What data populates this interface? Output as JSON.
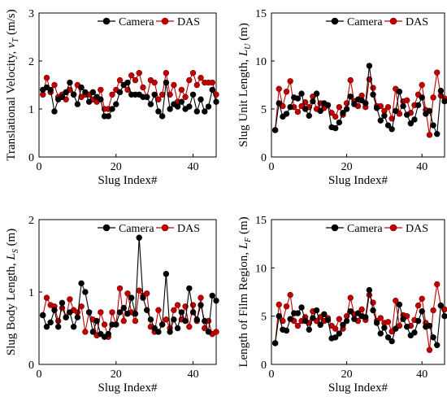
{
  "chart_data": [
    {
      "type": "line",
      "xlabel": "Slug Index#",
      "ylabel_main": "Translational Velocity, ",
      "ylabel_sym": "v",
      "ylabel_sub": "T",
      "ylabel_unit": " (m/s)",
      "xlim": [
        0,
        46
      ],
      "ylim": [
        0,
        3
      ],
      "xticks": [
        0,
        20,
        40
      ],
      "yticks": [
        0,
        1,
        2,
        3
      ],
      "legend": "top-right",
      "series": [
        {
          "name": "Camera",
          "color": "#000000",
          "x": [
            1,
            2,
            3,
            4,
            5,
            6,
            7,
            8,
            9,
            10,
            11,
            12,
            13,
            14,
            15,
            16,
            17,
            18,
            19,
            20,
            21,
            22,
            23,
            24,
            25,
            26,
            27,
            28,
            29,
            30,
            31,
            32,
            33,
            34,
            35,
            36,
            37,
            38,
            39,
            40,
            41,
            42,
            43,
            44,
            45,
            46
          ],
          "values": [
            1.4,
            1.45,
            1.4,
            0.95,
            1.2,
            1.25,
            1.35,
            1.55,
            1.3,
            1.1,
            1.45,
            1.35,
            1.15,
            1.35,
            1.25,
            1.2,
            0.85,
            0.85,
            1.0,
            1.1,
            1.35,
            1.5,
            1.55,
            1.3,
            1.3,
            1.3,
            1.25,
            1.25,
            1.1,
            1.3,
            0.95,
            0.85,
            1.55,
            1.0,
            1.1,
            1.05,
            1.15,
            1.0,
            1.05,
            1.3,
            0.95,
            1.2,
            0.95,
            1.05,
            1.4,
            1.15
          ]
        },
        {
          "name": "DAS",
          "color": "#c00000",
          "x": [
            1,
            2,
            3,
            4,
            5,
            6,
            7,
            8,
            9,
            10,
            11,
            12,
            13,
            14,
            15,
            16,
            17,
            18,
            19,
            20,
            21,
            22,
            23,
            24,
            25,
            26,
            27,
            28,
            29,
            30,
            31,
            32,
            33,
            34,
            35,
            36,
            37,
            38,
            39,
            40,
            41,
            42,
            43,
            44,
            45,
            46
          ],
          "values": [
            1.3,
            1.65,
            1.35,
            1.5,
            1.25,
            1.3,
            1.2,
            1.4,
            1.3,
            1.5,
            1.25,
            1.3,
            1.3,
            1.2,
            1.15,
            1.4,
            1.0,
            1.0,
            1.3,
            1.4,
            1.6,
            1.5,
            1.4,
            1.7,
            1.6,
            1.75,
            1.45,
            1.25,
            1.6,
            1.55,
            1.2,
            1.3,
            1.75,
            1.3,
            1.5,
            1.15,
            1.4,
            1.25,
            1.6,
            1.75,
            1.5,
            1.65,
            1.55,
            1.55,
            1.55,
            1.3
          ]
        }
      ]
    },
    {
      "type": "line",
      "xlabel": "Slug Index#",
      "ylabel_main": "Slug Unit Length, ",
      "ylabel_sym": "L",
      "ylabel_sub": "U",
      "ylabel_unit": " (m)",
      "xlim": [
        0,
        46
      ],
      "ylim": [
        0,
        15
      ],
      "xticks": [
        0,
        20,
        40
      ],
      "yticks": [
        0,
        5,
        10,
        15
      ],
      "legend": "top-right",
      "series": [
        {
          "name": "Camera",
          "color": "#000000",
          "x": [
            1,
            2,
            3,
            4,
            5,
            6,
            7,
            8,
            9,
            10,
            11,
            12,
            13,
            14,
            15,
            16,
            17,
            18,
            19,
            20,
            21,
            22,
            23,
            24,
            25,
            26,
            27,
            28,
            29,
            30,
            31,
            32,
            33,
            34,
            35,
            36,
            37,
            38,
            39,
            40,
            41,
            42,
            43,
            44,
            45,
            46
          ],
          "values": [
            2.8,
            5.6,
            4.2,
            4.5,
            5.2,
            6.2,
            6.1,
            6.6,
            5.0,
            4.3,
            5.8,
            6.6,
            4.8,
            5.6,
            5.4,
            3.1,
            3.0,
            3.6,
            4.6,
            5.0,
            6.3,
            5.5,
            6.0,
            5.9,
            5.6,
            9.5,
            6.5,
            5.1,
            3.8,
            4.3,
            3.3,
            2.9,
            4.8,
            6.8,
            5.3,
            4.4,
            3.5,
            3.9,
            5.4,
            6.2,
            4.5,
            4.8,
            3.3,
            2.4,
            6.9,
            5.8
          ]
        },
        {
          "name": "DAS",
          "color": "#c00000",
          "x": [
            1,
            2,
            3,
            4,
            5,
            6,
            7,
            8,
            9,
            10,
            11,
            12,
            13,
            14,
            15,
            16,
            17,
            18,
            19,
            20,
            21,
            22,
            23,
            24,
            25,
            26,
            27,
            28,
            29,
            30,
            31,
            32,
            33,
            34,
            35,
            36,
            37,
            38,
            39,
            40,
            41,
            42,
            43,
            44,
            45,
            46
          ],
          "values": [
            2.8,
            7.1,
            5.3,
            6.8,
            7.9,
            5.2,
            4.7,
            5.3,
            5.7,
            5.2,
            6.3,
            5.0,
            5.6,
            5.1,
            5.4,
            4.6,
            4.2,
            5.2,
            4.4,
            5.6,
            8.0,
            5.8,
            5.3,
            6.4,
            5.2,
            8.1,
            7.2,
            5.3,
            5.3,
            4.8,
            5.2,
            4.0,
            7.1,
            4.5,
            5.8,
            5.9,
            4.6,
            5.4,
            6.5,
            7.5,
            4.9,
            2.3,
            6.2,
            8.8,
            6.4,
            6.1
          ]
        }
      ]
    },
    {
      "type": "line",
      "xlabel": "Slug Index#",
      "ylabel_main": "Slug Body Length, ",
      "ylabel_sym": "L",
      "ylabel_sub": "S",
      "ylabel_unit": " (m)",
      "xlim": [
        0,
        46
      ],
      "ylim": [
        0,
        2
      ],
      "xticks": [
        0,
        20,
        40
      ],
      "yticks": [
        0,
        1,
        2
      ],
      "legend": "top-right",
      "series": [
        {
          "name": "Camera",
          "color": "#000000",
          "x": [
            1,
            2,
            3,
            4,
            5,
            6,
            7,
            8,
            9,
            10,
            11,
            12,
            13,
            14,
            15,
            16,
            17,
            18,
            19,
            20,
            21,
            22,
            23,
            24,
            25,
            26,
            27,
            28,
            29,
            30,
            31,
            32,
            33,
            34,
            35,
            36,
            37,
            38,
            39,
            40,
            41,
            42,
            43,
            44,
            45,
            46
          ],
          "values": [
            0.68,
            0.52,
            0.58,
            0.75,
            0.52,
            0.85,
            0.65,
            0.72,
            0.52,
            0.65,
            1.12,
            1.0,
            0.72,
            0.45,
            0.6,
            0.42,
            0.38,
            0.42,
            0.55,
            0.55,
            0.72,
            0.78,
            0.7,
            0.92,
            0.7,
            1.75,
            0.92,
            0.75,
            0.62,
            0.5,
            0.45,
            0.55,
            1.25,
            0.45,
            0.62,
            0.5,
            0.72,
            0.6,
            1.05,
            0.72,
            0.62,
            0.82,
            0.6,
            0.45,
            0.95,
            0.88
          ]
        },
        {
          "name": "DAS",
          "color": "#c00000",
          "x": [
            1,
            2,
            3,
            4,
            5,
            6,
            7,
            8,
            9,
            10,
            11,
            12,
            13,
            14,
            15,
            16,
            17,
            18,
            19,
            20,
            21,
            22,
            23,
            24,
            25,
            26,
            27,
            28,
            29,
            30,
            31,
            32,
            33,
            34,
            35,
            36,
            37,
            38,
            39,
            40,
            41,
            42,
            43,
            44,
            45,
            46
          ],
          "values": [
            0.68,
            0.92,
            0.82,
            0.8,
            0.6,
            0.78,
            0.65,
            0.9,
            0.75,
            0.72,
            0.8,
            0.45,
            0.72,
            0.62,
            0.4,
            0.72,
            0.55,
            0.38,
            0.72,
            0.55,
            1.05,
            0.6,
            0.98,
            0.72,
            0.6,
            1.02,
            0.95,
            0.98,
            0.52,
            0.45,
            0.75,
            0.55,
            0.62,
            0.5,
            0.75,
            0.82,
            0.62,
            0.8,
            0.52,
            0.82,
            0.6,
            0.92,
            0.5,
            0.6,
            0.42,
            0.45
          ]
        }
      ]
    },
    {
      "type": "line",
      "xlabel": "Slug Index#",
      "ylabel_main": "Length of Film Region, ",
      "ylabel_sym": "L",
      "ylabel_sub": "F",
      "ylabel_unit": " (m)",
      "xlim": [
        0,
        46
      ],
      "ylim": [
        0,
        15
      ],
      "xticks": [
        0,
        20,
        40
      ],
      "yticks": [
        0,
        5,
        10,
        15
      ],
      "legend": "top-right",
      "series": [
        {
          "name": "Camera",
          "color": "#000000",
          "x": [
            1,
            2,
            3,
            4,
            5,
            6,
            7,
            8,
            9,
            10,
            11,
            12,
            13,
            14,
            15,
            16,
            17,
            18,
            19,
            20,
            21,
            22,
            23,
            24,
            25,
            26,
            27,
            28,
            29,
            30,
            31,
            32,
            33,
            34,
            35,
            36,
            37,
            38,
            39,
            40,
            41,
            42,
            43,
            44,
            45,
            46
          ],
          "values": [
            2.2,
            5.0,
            3.6,
            3.5,
            4.7,
            5.3,
            5.3,
            5.9,
            4.5,
            3.6,
            4.8,
            5.6,
            4.1,
            5.2,
            4.6,
            2.7,
            2.8,
            3.2,
            4.1,
            4.5,
            5.5,
            4.7,
            5.3,
            5.0,
            4.9,
            7.7,
            5.6,
            4.3,
            3.2,
            3.8,
            2.8,
            2.4,
            3.7,
            6.2,
            4.7,
            3.9,
            3.0,
            3.3,
            4.5,
            5.5,
            3.9,
            4.0,
            2.8,
            2.0,
            6.1,
            5.0
          ]
        },
        {
          "name": "DAS",
          "color": "#c00000",
          "x": [
            1,
            2,
            3,
            4,
            5,
            6,
            7,
            8,
            9,
            10,
            11,
            12,
            13,
            14,
            15,
            16,
            17,
            18,
            19,
            20,
            21,
            22,
            23,
            24,
            25,
            26,
            27,
            28,
            29,
            30,
            31,
            32,
            33,
            34,
            35,
            36,
            37,
            38,
            39,
            40,
            41,
            42,
            43,
            44,
            45,
            46
          ],
          "values": [
            2.2,
            6.2,
            4.5,
            6.0,
            7.2,
            4.5,
            4.0,
            4.5,
            4.9,
            4.3,
            5.5,
            4.5,
            4.9,
            4.5,
            4.8,
            4.0,
            3.7,
            4.7,
            3.7,
            5.0,
            6.9,
            5.2,
            4.5,
            5.7,
            4.6,
            7.2,
            6.4,
            4.5,
            4.8,
            4.3,
            4.4,
            3.4,
            6.6,
            4.0,
            5.1,
            5.0,
            4.0,
            4.6,
            6.1,
            6.8,
            4.3,
            1.5,
            5.6,
            8.3,
            6.1,
            5.7
          ]
        }
      ]
    }
  ]
}
